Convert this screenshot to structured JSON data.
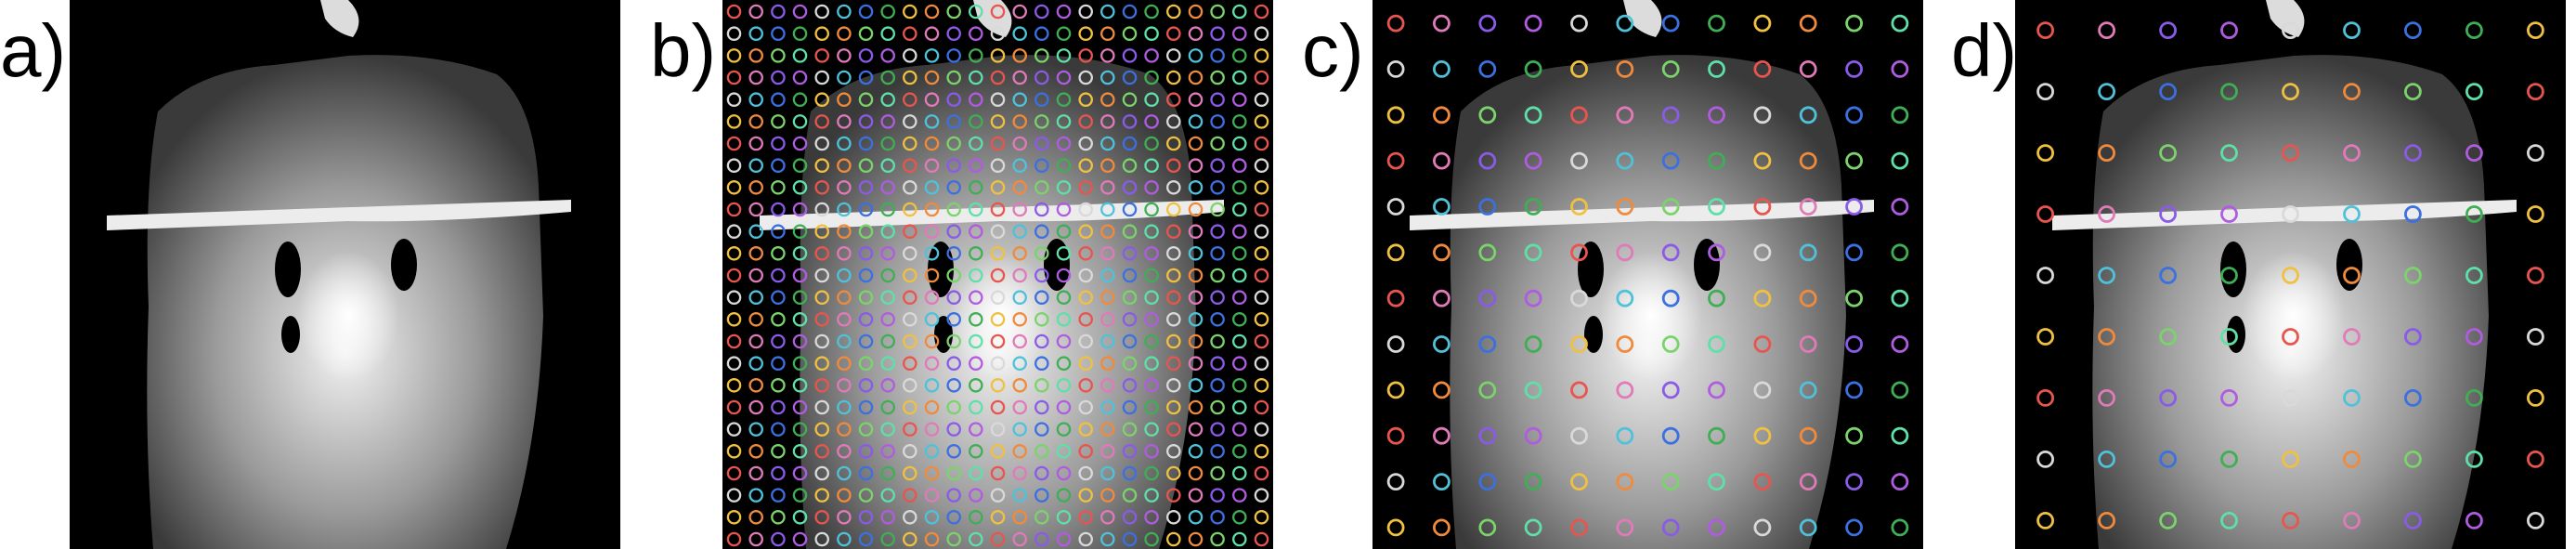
{
  "panels": [
    {
      "label": "a)",
      "grid_size": 0
    },
    {
      "label": "b)",
      "grid_size": 25
    },
    {
      "label": "c)",
      "grid_size": 12
    },
    {
      "label": "d)",
      "grid_size": 9
    }
  ],
  "colors": {
    "background": "#000000",
    "face_bright": "#f2f2f2",
    "face_mid": "#9a9a9a",
    "face_dark": "#3a3a3a",
    "marker_palette": [
      "#e8554e",
      "#4fc2d9",
      "#7bd36b",
      "#b05ce0",
      "#f0c040",
      "#e07ab8",
      "#3c6fe0",
      "#5ee0a8",
      "#d9d9d9",
      "#f08a3c",
      "#8a5be6",
      "#3fae55"
    ]
  },
  "marker_shape": "ring"
}
